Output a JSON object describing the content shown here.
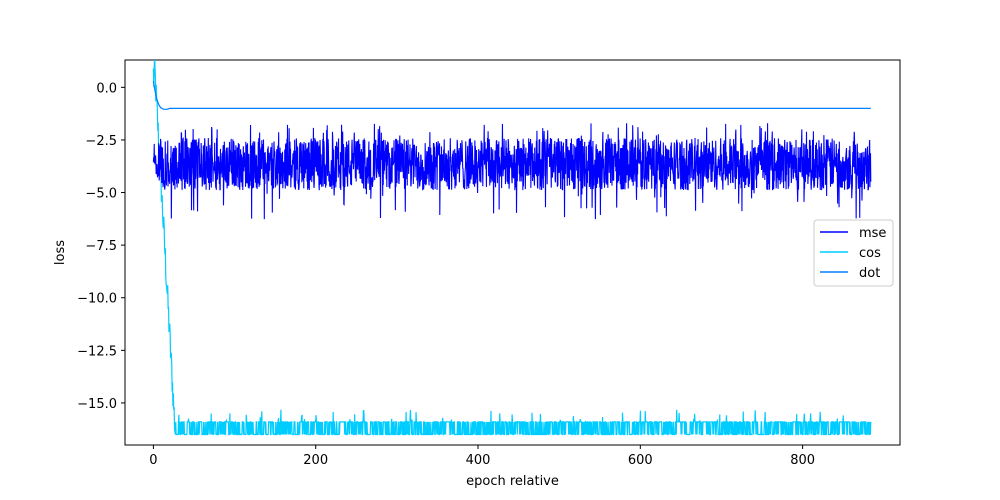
{
  "chart_data": {
    "type": "line",
    "title": "",
    "xlabel": "epoch relative",
    "ylabel": "loss",
    "xlim": [
      -35,
      920
    ],
    "ylim": [
      -17.0,
      1.3
    ],
    "xticks": [
      0,
      200,
      400,
      600,
      800
    ],
    "yticks": [
      0.0,
      -2.5,
      -5.0,
      -7.5,
      -10.0,
      -12.5,
      -15.0
    ],
    "ytick_labels": [
      "0.0",
      "−2.5",
      "−5.0",
      "−7.5",
      "−10.0",
      "−12.5",
      "−15.0"
    ],
    "xtick_labels": [
      "0",
      "200",
      "400",
      "600",
      "800"
    ],
    "grid": false,
    "legend_position": "center-right",
    "x_range": [
      0,
      884
    ],
    "series": [
      {
        "name": "mse",
        "color": "#0000ff",
        "shape": "noisy band after epoch ~5",
        "start_value": -3.0,
        "band_low": -5.0,
        "band_high": -2.3,
        "spike_min": -6.3,
        "spike_max": -1.7
      },
      {
        "name": "cos",
        "color": "#00ccff",
        "shape": "drops from 0.5 to ~-16.5 by epoch ~27, then oscillates",
        "start_value": 0.5,
        "drop_end_epoch": 27,
        "floor_value": -16.5,
        "ceiling_value": -15.9,
        "spike_max": -15.3
      },
      {
        "name": "dot",
        "color": "#0080ff",
        "shape": "flat after brief initial transient",
        "start_value": 0.3,
        "steady_value": -1.0
      }
    ]
  }
}
